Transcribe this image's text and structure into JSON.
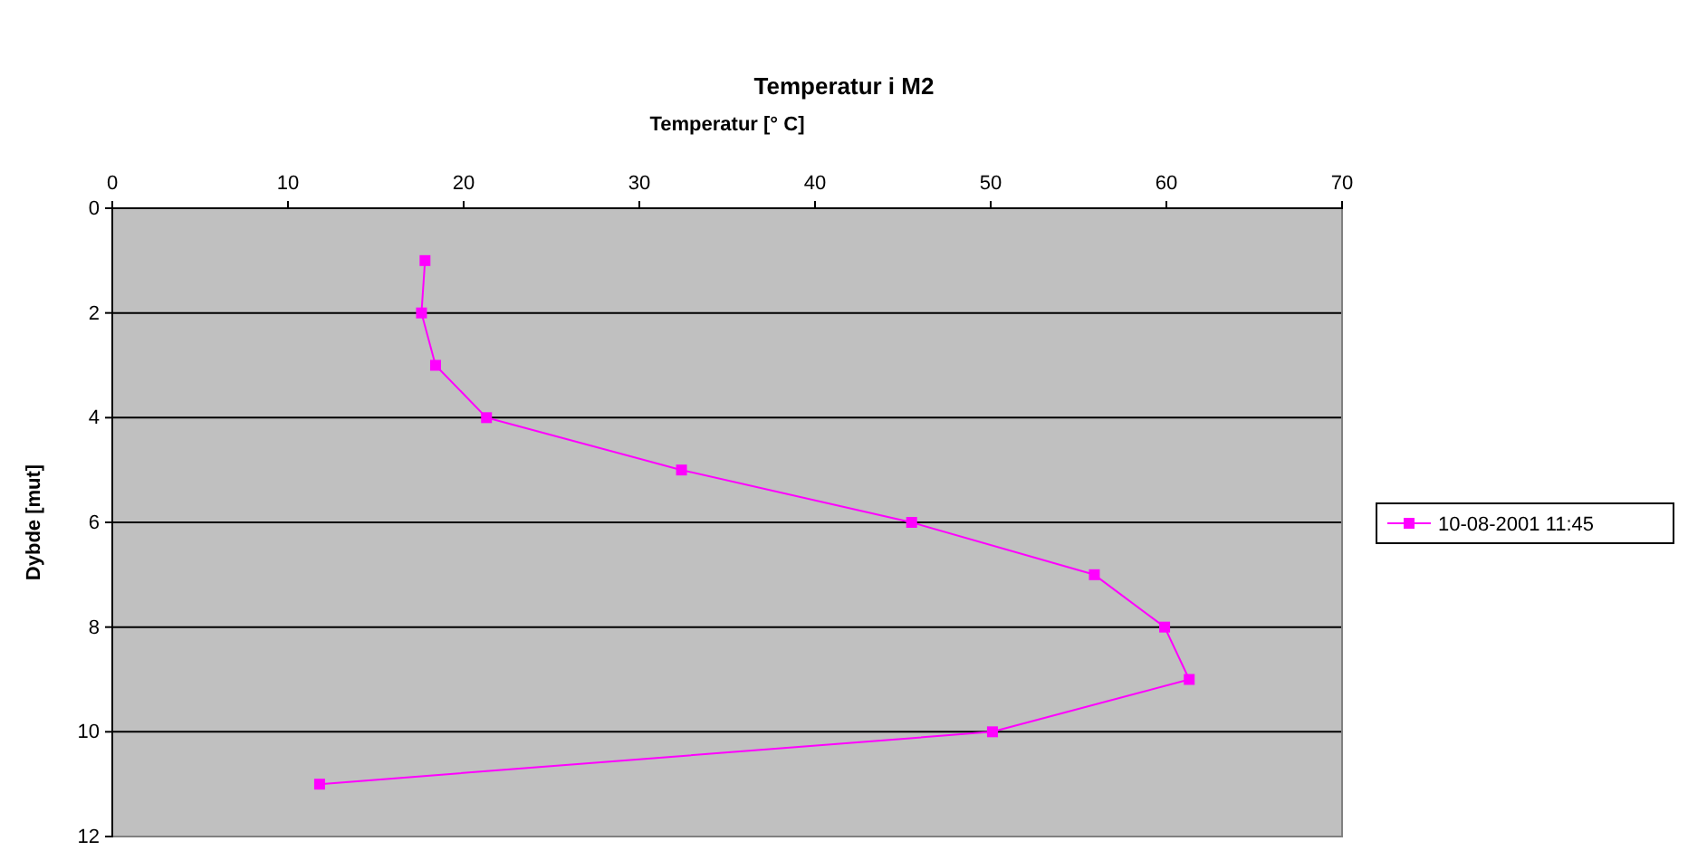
{
  "chart_data": {
    "type": "line",
    "title": "Temperatur i M2",
    "xlabel": "Temperatur [° C]",
    "ylabel": "Dybde [mut]",
    "x": [
      17.8,
      17.6,
      18.4,
      21.3,
      32.4,
      45.5,
      55.9,
      59.9,
      61.3,
      50.1,
      11.8
    ],
    "series": [
      {
        "name": "10-08-2001 11:45",
        "color": "#ff00ff",
        "values": [
          1,
          2,
          3,
          4,
          5,
          6,
          7,
          8,
          9,
          10,
          11
        ]
      }
    ],
    "xlim": [
      0,
      70
    ],
    "xticks": [
      0,
      10,
      20,
      30,
      40,
      50,
      60,
      70
    ],
    "ylim": [
      12,
      0
    ],
    "yticks": [
      0,
      2,
      4,
      6,
      8,
      10,
      12
    ],
    "grid": "y",
    "legend": "right",
    "marker": "square",
    "line_style": "solid"
  }
}
